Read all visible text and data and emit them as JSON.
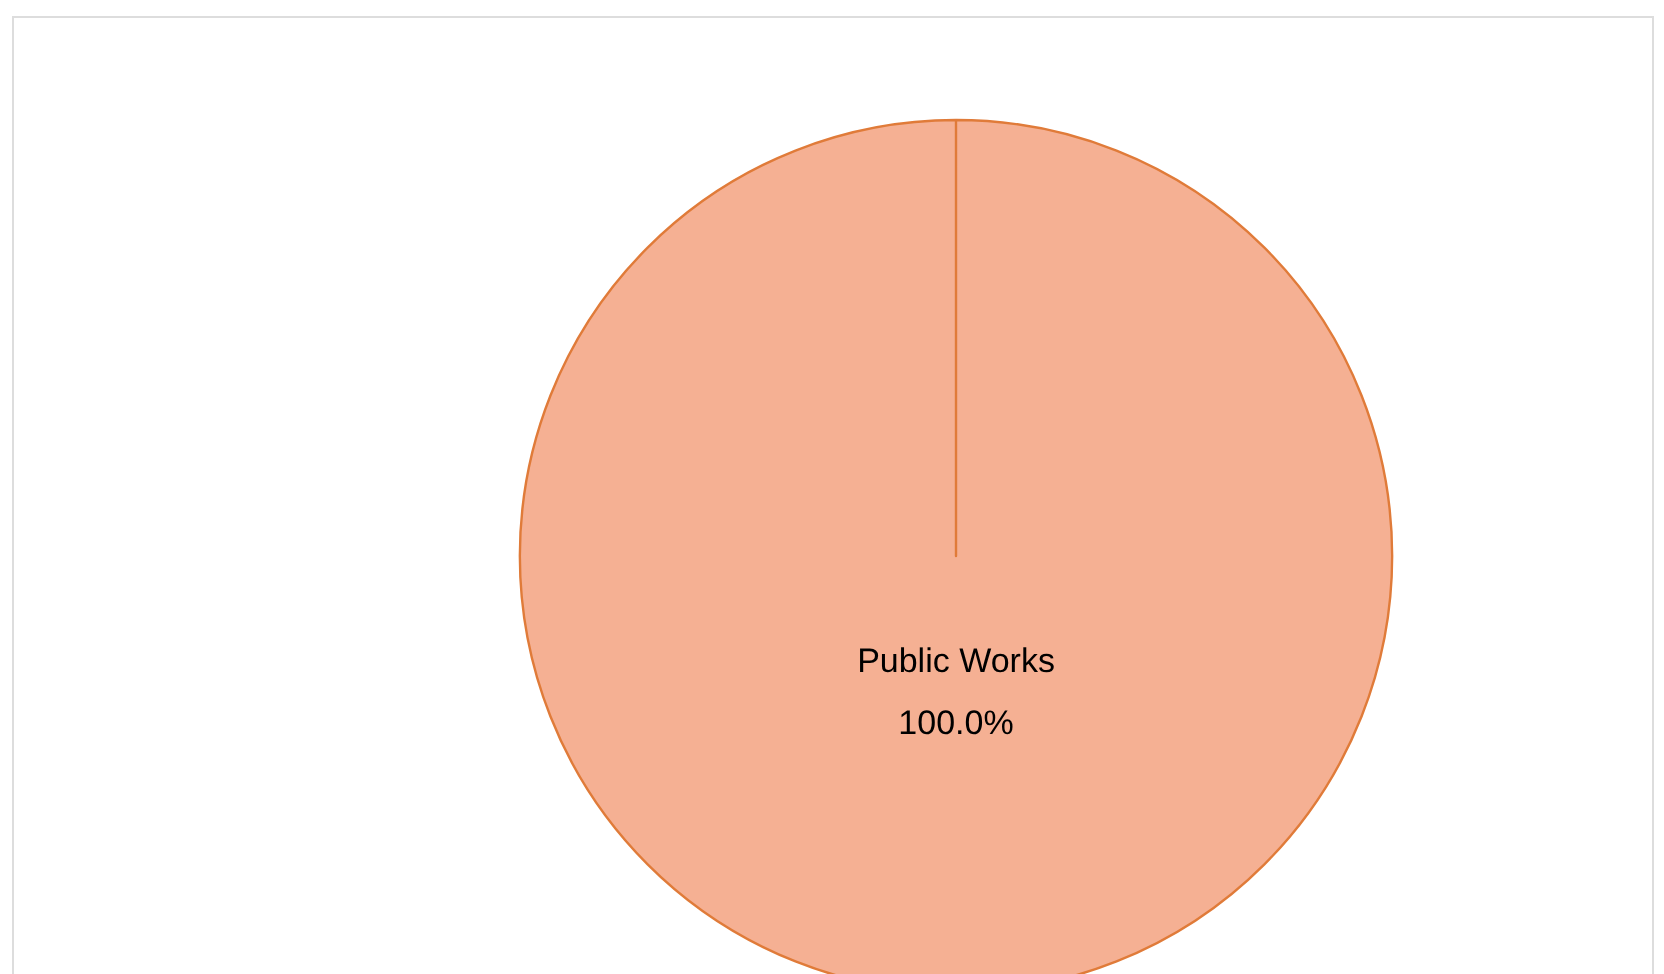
{
  "chart_data": {
    "type": "pie",
    "categories": [
      "Public Works"
    ],
    "values": [
      100
    ],
    "colors": [
      "#f5b093"
    ],
    "value_labels": [
      "100.0%"
    ]
  }
}
